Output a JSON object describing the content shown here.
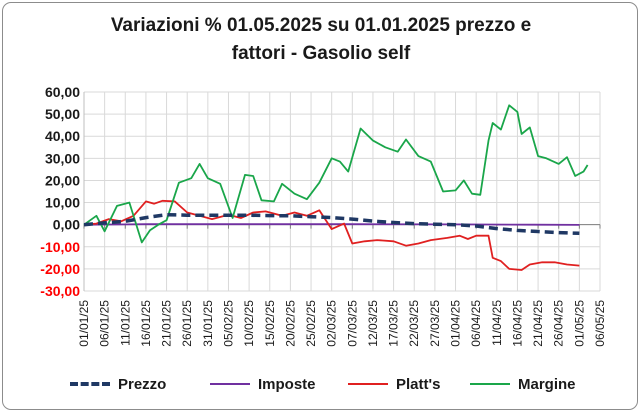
{
  "chart_data": {
    "type": "line",
    "title_lines": [
      "Variazioni % 01.05.2025 su 01.01.2025 prezzo e",
      "fattori - Gasolio self"
    ],
    "xlabel": "",
    "ylabel": "",
    "ylim": [
      -30,
      60
    ],
    "yticks": [
      "60,00",
      "50,00",
      "40,00",
      "30,00",
      "20,00",
      "10,00",
      "0,00",
      "-10,00",
      "-20,00",
      "-30,00"
    ],
    "ytick_values": [
      60,
      50,
      40,
      30,
      20,
      10,
      0,
      -10,
      -20,
      -30
    ],
    "xlim": [
      "2025-01-01",
      "2025-05-06"
    ],
    "xticks": [
      "01/01/25",
      "06/01/25",
      "11/01/25",
      "16/01/25",
      "21/01/25",
      "26/01/25",
      "31/01/25",
      "05/02/25",
      "10/02/25",
      "15/02/25",
      "20/02/25",
      "25/02/25",
      "02/03/25",
      "07/03/25",
      "12/03/25",
      "17/03/25",
      "22/03/25",
      "27/03/25",
      "01/04/25",
      "06/04/25",
      "11/04/25",
      "16/04/25",
      "21/04/25",
      "26/04/25",
      "01/05/25",
      "06/05/25"
    ],
    "grid": true,
    "legend_position": "bottom",
    "colors": {
      "prezzo": "#1f3864",
      "imposte": "#7030a0",
      "platts": "#e02020",
      "margine": "#1aa64a",
      "grid": "#d9d9d9",
      "axis_neg": "#ff0000"
    },
    "series": [
      {
        "name": "Prezzo",
        "style": "dashed",
        "color": "#1f3864",
        "points": [
          [
            "2025-01-01",
            0
          ],
          [
            "2025-01-06",
            0.8
          ],
          [
            "2025-01-11",
            1.5
          ],
          [
            "2025-01-16",
            3.2
          ],
          [
            "2025-01-21",
            4.5
          ],
          [
            "2025-01-26",
            4.3
          ],
          [
            "2025-01-31",
            4.3
          ],
          [
            "2025-02-05",
            4.3
          ],
          [
            "2025-02-10",
            4.3
          ],
          [
            "2025-02-15",
            4.1
          ],
          [
            "2025-02-20",
            4.0
          ],
          [
            "2025-02-25",
            3.6
          ],
          [
            "2025-03-02",
            3.2
          ],
          [
            "2025-03-07",
            2.5
          ],
          [
            "2025-03-12",
            1.6
          ],
          [
            "2025-03-17",
            1.0
          ],
          [
            "2025-03-22",
            0.5
          ],
          [
            "2025-03-27",
            0.2
          ],
          [
            "2025-04-01",
            0.0
          ],
          [
            "2025-04-06",
            -0.6
          ],
          [
            "2025-04-11",
            -1.8
          ],
          [
            "2025-04-16",
            -2.6
          ],
          [
            "2025-04-21",
            -3.1
          ],
          [
            "2025-04-26",
            -3.6
          ],
          [
            "2025-05-01",
            -3.9
          ]
        ]
      },
      {
        "name": "Imposte",
        "style": "solid",
        "color": "#7030a0",
        "points": [
          [
            "2025-01-01",
            0
          ],
          [
            "2025-01-16",
            0.2
          ],
          [
            "2025-02-10",
            0.2
          ],
          [
            "2025-03-07",
            0.2
          ],
          [
            "2025-04-01",
            0.1
          ],
          [
            "2025-04-20",
            0.0
          ],
          [
            "2025-05-01",
            -0.1
          ]
        ]
      },
      {
        "name": "Platt's",
        "style": "solid",
        "color": "#e02020",
        "points": [
          [
            "2025-01-01",
            0
          ],
          [
            "2025-01-04",
            0.5
          ],
          [
            "2025-01-07",
            2.5
          ],
          [
            "2025-01-10",
            1.5
          ],
          [
            "2025-01-13",
            4.0
          ],
          [
            "2025-01-16",
            10.5
          ],
          [
            "2025-01-18",
            9.5
          ],
          [
            "2025-01-20",
            10.8
          ],
          [
            "2025-01-23",
            10.5
          ],
          [
            "2025-01-26",
            5.5
          ],
          [
            "2025-01-29",
            4.0
          ],
          [
            "2025-02-01",
            2.5
          ],
          [
            "2025-02-05",
            4.5
          ],
          [
            "2025-02-08",
            3.0
          ],
          [
            "2025-02-11",
            5.5
          ],
          [
            "2025-02-14",
            6.0
          ],
          [
            "2025-02-18",
            4.0
          ],
          [
            "2025-02-21",
            5.5
          ],
          [
            "2025-02-24",
            4.0
          ],
          [
            "2025-02-27",
            6.5
          ],
          [
            "2025-03-02",
            -2.0
          ],
          [
            "2025-03-05",
            0.5
          ],
          [
            "2025-03-07",
            -8.5
          ],
          [
            "2025-03-10",
            -7.5
          ],
          [
            "2025-03-13",
            -7.0
          ],
          [
            "2025-03-17",
            -7.5
          ],
          [
            "2025-03-20",
            -9.5
          ],
          [
            "2025-03-23",
            -8.5
          ],
          [
            "2025-03-26",
            -7.0
          ],
          [
            "2025-03-30",
            -6.0
          ],
          [
            "2025-04-02",
            -5.0
          ],
          [
            "2025-04-04",
            -6.5
          ],
          [
            "2025-04-06",
            -5.0
          ],
          [
            "2025-04-09",
            -5.0
          ],
          [
            "2025-04-10",
            -15.0
          ],
          [
            "2025-04-12",
            -16.5
          ],
          [
            "2025-04-14",
            -20.0
          ],
          [
            "2025-04-17",
            -20.5
          ],
          [
            "2025-04-19",
            -18.0
          ],
          [
            "2025-04-22",
            -17.0
          ],
          [
            "2025-04-25",
            -17.0
          ],
          [
            "2025-04-28",
            -18.0
          ],
          [
            "2025-05-01",
            -18.5
          ]
        ]
      },
      {
        "name": "Margine",
        "style": "solid",
        "color": "#1aa64a",
        "points": [
          [
            "2025-01-01",
            0
          ],
          [
            "2025-01-04",
            4.0
          ],
          [
            "2025-01-06",
            -3.0
          ],
          [
            "2025-01-09",
            8.5
          ],
          [
            "2025-01-12",
            10.0
          ],
          [
            "2025-01-15",
            -8.0
          ],
          [
            "2025-01-17",
            -2.5
          ],
          [
            "2025-01-19",
            0.0
          ],
          [
            "2025-01-21",
            2.0
          ],
          [
            "2025-01-24",
            19.0
          ],
          [
            "2025-01-27",
            21.0
          ],
          [
            "2025-01-29",
            27.5
          ],
          [
            "2025-01-31",
            21.0
          ],
          [
            "2025-02-03",
            18.5
          ],
          [
            "2025-02-06",
            3.0
          ],
          [
            "2025-02-09",
            22.5
          ],
          [
            "2025-02-11",
            22.0
          ],
          [
            "2025-02-13",
            11.0
          ],
          [
            "2025-02-16",
            10.5
          ],
          [
            "2025-02-18",
            18.5
          ],
          [
            "2025-02-21",
            14.0
          ],
          [
            "2025-02-24",
            11.5
          ],
          [
            "2025-02-27",
            19.0
          ],
          [
            "2025-03-02",
            30.0
          ],
          [
            "2025-03-04",
            28.5
          ],
          [
            "2025-03-06",
            24.0
          ],
          [
            "2025-03-09",
            43.5
          ],
          [
            "2025-03-12",
            38.0
          ],
          [
            "2025-03-15",
            35.0
          ],
          [
            "2025-03-18",
            33.0
          ],
          [
            "2025-03-20",
            38.5
          ],
          [
            "2025-03-23",
            31.0
          ],
          [
            "2025-03-26",
            28.5
          ],
          [
            "2025-03-29",
            15.0
          ],
          [
            "2025-04-01",
            15.5
          ],
          [
            "2025-04-03",
            20.0
          ],
          [
            "2025-04-05",
            14.0
          ],
          [
            "2025-04-07",
            13.5
          ],
          [
            "2025-04-09",
            38.0
          ],
          [
            "2025-04-10",
            46.0
          ],
          [
            "2025-04-12",
            43.0
          ],
          [
            "2025-04-14",
            54.0
          ],
          [
            "2025-04-16",
            51.0
          ],
          [
            "2025-04-17",
            41.0
          ],
          [
            "2025-04-19",
            44.0
          ],
          [
            "2025-04-21",
            31.0
          ],
          [
            "2025-04-23",
            30.0
          ],
          [
            "2025-04-26",
            27.5
          ],
          [
            "2025-04-28",
            30.5
          ],
          [
            "2025-04-30",
            22.0
          ],
          [
            "2025-05-02",
            24.0
          ],
          [
            "2025-05-03",
            27.0
          ]
        ]
      }
    ]
  }
}
